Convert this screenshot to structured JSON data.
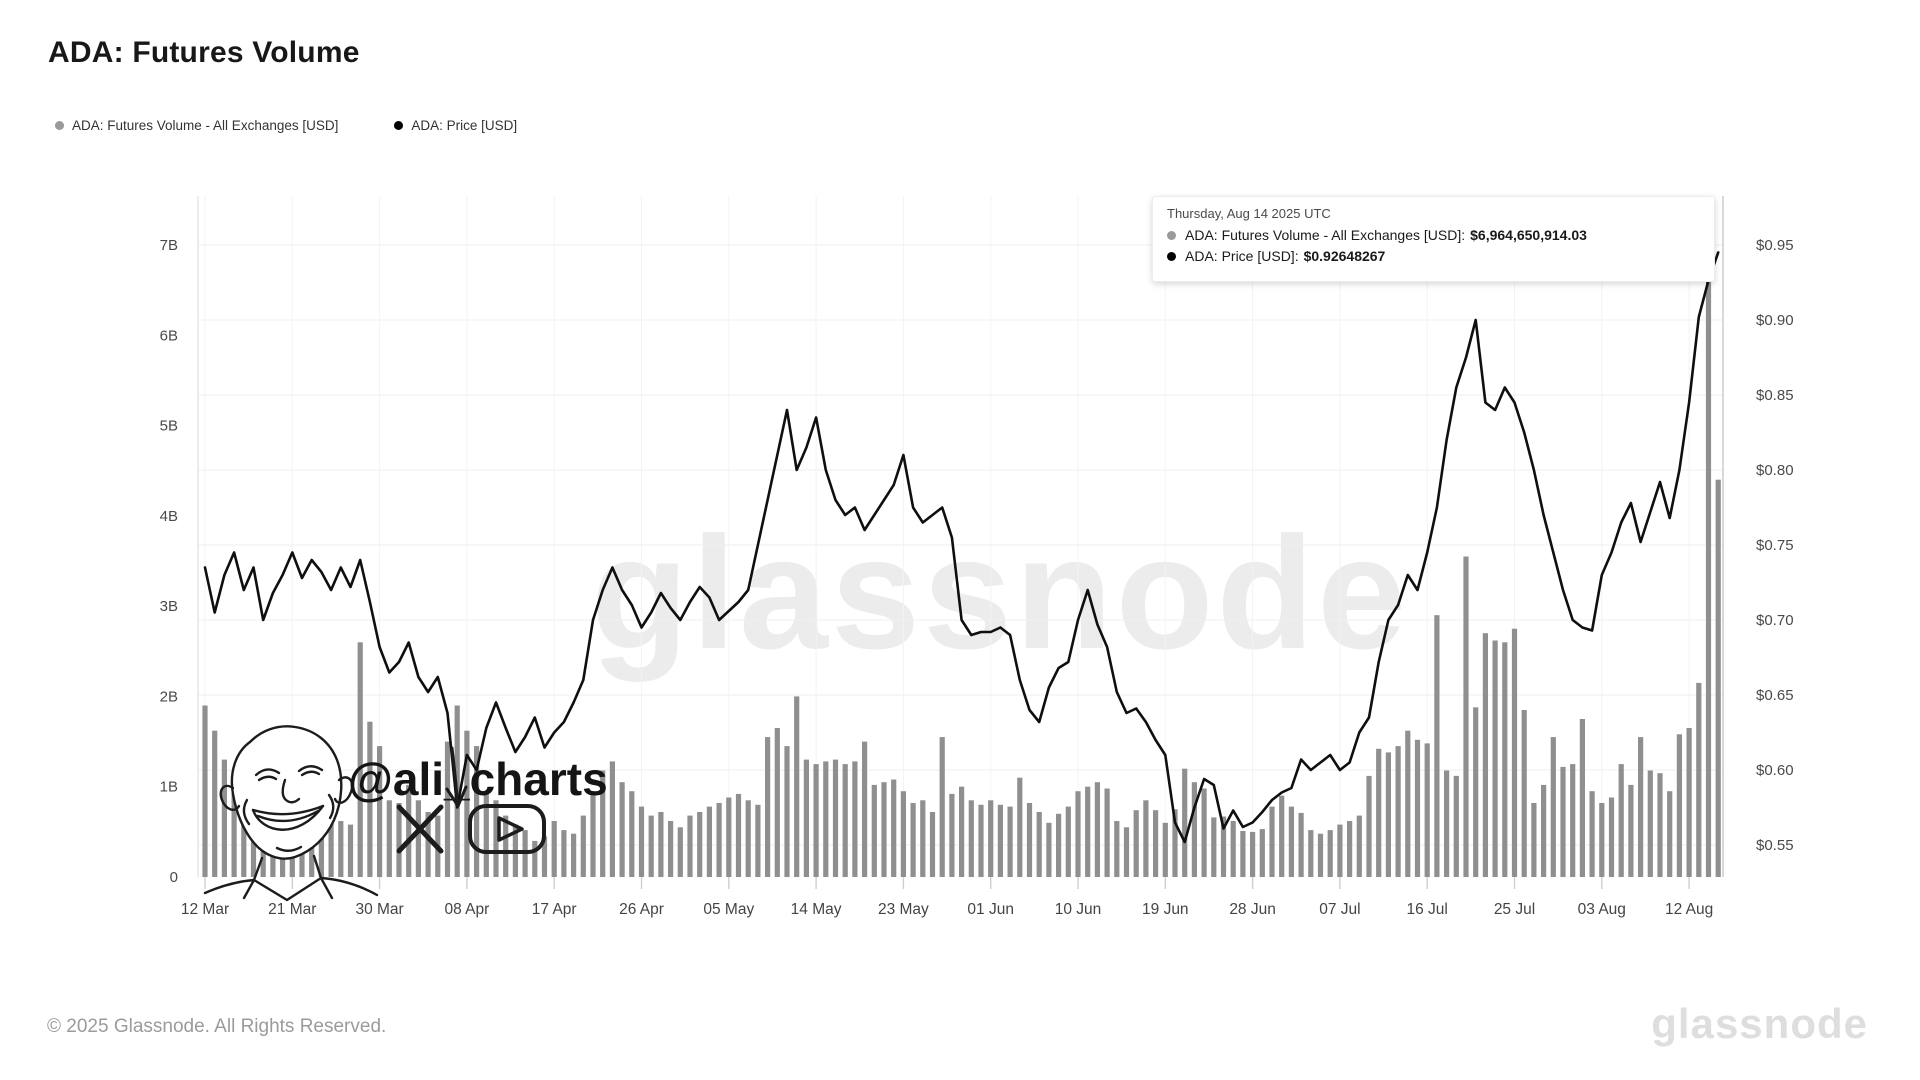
{
  "title": "ADA: Futures Volume",
  "legend": [
    {
      "label": "ADA: Futures Volume - All Exchanges [USD]",
      "color": "#9a9a9a"
    },
    {
      "label": "ADA: Price [USD]",
      "color": "#000000"
    }
  ],
  "tooltip": {
    "date": "Thursday, Aug 14 2025 UTC",
    "items": [
      {
        "label": "ADA: Futures Volume - All Exchanges [USD]:",
        "value": "$6,964,650,914.03",
        "color": "#9a9a9a"
      },
      {
        "label": "ADA: Price [USD]:",
        "value": "$0.92648267",
        "color": "#000000"
      }
    ]
  },
  "watermark": "glassnode",
  "annotation": {
    "handle": "@ali_charts"
  },
  "footer": {
    "copyright": "© 2025 Glassnode. All Rights Reserved.",
    "brand": "glassnode"
  },
  "chart_data": {
    "type": "bar+line",
    "x_start": "2025-03-12",
    "x_end": "2025-08-15",
    "x_interval": "1 day",
    "x_tick_labels": [
      "12 Mar",
      "21 Mar",
      "30 Mar",
      "08 Apr",
      "17 Apr",
      "26 Apr",
      "05 May",
      "14 May",
      "23 May",
      "01 Jun",
      "10 Jun",
      "19 Jun",
      "28 Jun",
      "07 Jul",
      "16 Jul",
      "25 Jul",
      "03 Aug",
      "12 Aug"
    ],
    "left_axis": {
      "tick_labels": [
        "7B",
        "6B",
        "5B",
        "4B",
        "3B",
        "2B",
        "1B",
        "0"
      ],
      "min": 0,
      "max": 7,
      "unit": "USD billions"
    },
    "right_axis": {
      "tick_labels": [
        "$0.95",
        "$0.90",
        "$0.85",
        "$0.80",
        "$0.75",
        "$0.70",
        "$0.65",
        "$0.60",
        "$0.55"
      ],
      "tick_values": [
        0.95,
        0.9,
        0.85,
        0.8,
        0.75,
        0.7,
        0.65,
        0.6,
        0.55
      ],
      "unit": "USD"
    },
    "grid": true,
    "legend_position": "top-left",
    "series": [
      {
        "name": "ADA: Futures Volume - All Exchanges [USD]",
        "type": "bar",
        "color": "#8f8f8f",
        "unit": "USD billions",
        "values": [
          1.9,
          1.62,
          1.3,
          1.18,
          1.38,
          1.22,
          1.05,
          1.4,
          1.12,
          0.92,
          1.32,
          1.05,
          0.88,
          0.78,
          0.62,
          0.58,
          2.6,
          1.72,
          1.45,
          0.85,
          0.82,
          1.02,
          0.85,
          0.72,
          0.68,
          1.5,
          1.9,
          1.62,
          1.45,
          0.95,
          0.85,
          0.68,
          0.58,
          0.52,
          0.4,
          0.45,
          0.62,
          0.52,
          0.48,
          0.68,
          0.92,
          1.18,
          1.28,
          1.05,
          0.95,
          0.78,
          0.68,
          0.72,
          0.62,
          0.55,
          0.68,
          0.72,
          0.78,
          0.82,
          0.88,
          0.92,
          0.85,
          0.8,
          1.55,
          1.65,
          1.45,
          2.0,
          1.3,
          1.25,
          1.28,
          1.3,
          1.25,
          1.28,
          1.5,
          1.02,
          1.05,
          1.08,
          0.95,
          0.82,
          0.85,
          0.72,
          1.55,
          0.92,
          1.0,
          0.85,
          0.8,
          0.85,
          0.8,
          0.78,
          1.1,
          0.82,
          0.72,
          0.6,
          0.7,
          0.78,
          0.95,
          1.0,
          1.05,
          0.98,
          0.62,
          0.55,
          0.74,
          0.85,
          0.74,
          0.6,
          0.75,
          1.2,
          1.05,
          0.98,
          0.66,
          0.67,
          0.62,
          0.51,
          0.5,
          0.53,
          0.78,
          0.9,
          0.78,
          0.71,
          0.52,
          0.48,
          0.52,
          0.58,
          0.62,
          0.68,
          1.12,
          1.42,
          1.38,
          1.45,
          1.62,
          1.52,
          1.48,
          2.9,
          1.18,
          1.12,
          3.55,
          1.88,
          2.7,
          2.62,
          2.6,
          2.75,
          1.85,
          0.82,
          1.02,
          1.55,
          1.22,
          1.25,
          1.75,
          0.95,
          0.82,
          0.88,
          1.25,
          1.02,
          1.55,
          1.18,
          1.15,
          0.95,
          1.58,
          1.65,
          2.15,
          6.96,
          4.4
        ]
      },
      {
        "name": "ADA: Price [USD]",
        "type": "line",
        "color": "#0f0f0f",
        "unit": "USD",
        "values": [
          0.735,
          0.705,
          0.73,
          0.745,
          0.72,
          0.735,
          0.7,
          0.718,
          0.73,
          0.745,
          0.728,
          0.74,
          0.732,
          0.72,
          0.735,
          0.722,
          0.74,
          0.712,
          0.682,
          0.665,
          0.672,
          0.685,
          0.662,
          0.652,
          0.662,
          0.638,
          0.575,
          0.61,
          0.6,
          0.628,
          0.645,
          0.628,
          0.612,
          0.622,
          0.635,
          0.615,
          0.625,
          0.632,
          0.645,
          0.66,
          0.7,
          0.72,
          0.735,
          0.72,
          0.71,
          0.695,
          0.705,
          0.718,
          0.708,
          0.7,
          0.712,
          0.722,
          0.715,
          0.7,
          0.706,
          0.712,
          0.72,
          0.75,
          0.78,
          0.81,
          0.84,
          0.8,
          0.815,
          0.835,
          0.8,
          0.78,
          0.77,
          0.775,
          0.76,
          0.77,
          0.78,
          0.79,
          0.81,
          0.775,
          0.765,
          0.77,
          0.775,
          0.755,
          0.7,
          0.69,
          0.692,
          0.692,
          0.695,
          0.69,
          0.66,
          0.64,
          0.632,
          0.655,
          0.668,
          0.672,
          0.7,
          0.72,
          0.697,
          0.682,
          0.652,
          0.638,
          0.641,
          0.632,
          0.62,
          0.61,
          0.565,
          0.552,
          0.575,
          0.594,
          0.59,
          0.561,
          0.573,
          0.562,
          0.565,
          0.572,
          0.58,
          0.585,
          0.588,
          0.607,
          0.6,
          0.605,
          0.61,
          0.6,
          0.605,
          0.625,
          0.635,
          0.672,
          0.7,
          0.71,
          0.73,
          0.72,
          0.745,
          0.775,
          0.82,
          0.855,
          0.875,
          0.9,
          0.845,
          0.84,
          0.855,
          0.845,
          0.825,
          0.8,
          0.77,
          0.745,
          0.72,
          0.7,
          0.695,
          0.693,
          0.73,
          0.745,
          0.765,
          0.778,
          0.752,
          0.772,
          0.792,
          0.768,
          0.8,
          0.845,
          0.902,
          0.9265,
          0.945
        ]
      }
    ],
    "highlighted_point": {
      "date": "2025-08-14",
      "volume_usd": "6964650914.03",
      "price_usd": "0.92648267"
    }
  }
}
